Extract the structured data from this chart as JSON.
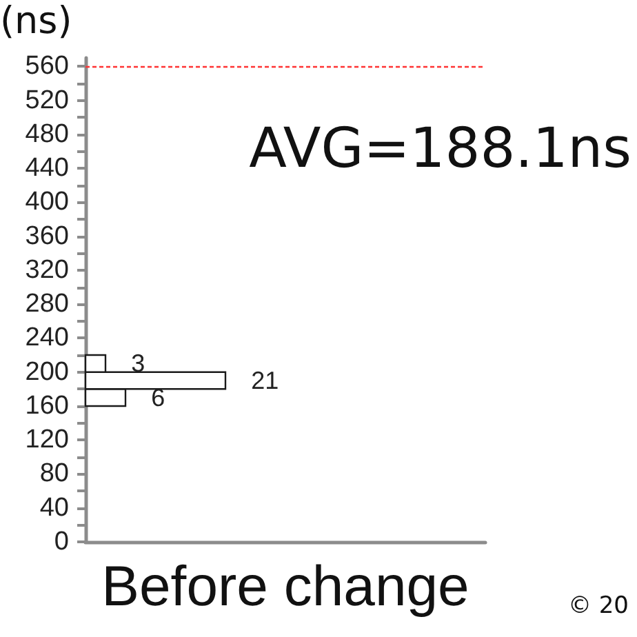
{
  "chart_data": {
    "type": "bar",
    "orientation": "horizontal",
    "x": [
      170,
      190,
      210
    ],
    "values": [
      6,
      21,
      3
    ],
    "color": "#ffffff",
    "data_labels": true,
    "xlabel": "Before change",
    "ylabel": "(ns)",
    "ylim": [
      0,
      570
    ],
    "yticks": [
      0,
      {
        "value": 20,
        "label": null
      },
      40,
      {
        "value": 60,
        "label": null
      },
      80,
      {
        "value": 100,
        "label": null
      },
      120,
      {
        "value": 140,
        "label": null
      },
      160,
      {
        "value": 180,
        "label": null
      },
      200,
      {
        "value": 220,
        "label": null
      },
      240,
      {
        "value": 260,
        "label": null
      },
      280,
      {
        "value": 300,
        "label": null
      },
      320,
      {
        "value": 340,
        "label": null
      },
      360,
      {
        "value": 380,
        "label": null
      },
      400,
      {
        "value": 420,
        "label": null
      },
      440,
      {
        "value": 460,
        "label": null
      },
      480,
      {
        "value": 500,
        "label": null
      },
      520,
      {
        "value": 540,
        "label": null
      },
      560
    ],
    "tick_labels": "y",
    "grid": false,
    "ref_lines": [
      {
        "axis": "y",
        "value": 560,
        "color": "#ff3333",
        "line_style": "dashed"
      }
    ],
    "annotations": [
      "AVG=188.1ns",
      "© 20"
    ]
  }
}
